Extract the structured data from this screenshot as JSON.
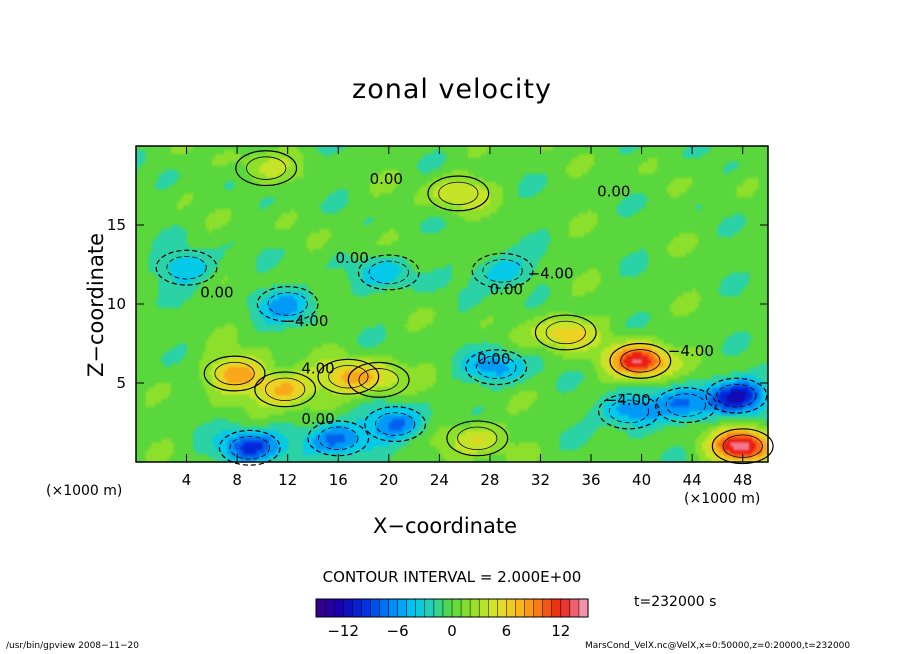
{
  "chart_data": {
    "type": "heatmap",
    "title": "zonal velocity",
    "xlabel": "X−coordinate",
    "ylabel": "Z−coordinate",
    "x_unit_left": "(×1000 m)",
    "x_unit_right": "(×1000 m)",
    "xlim": [
      0,
      50
    ],
    "ylim": [
      0,
      20
    ],
    "x_ticks": [
      "4",
      "8",
      "12",
      "16",
      "20",
      "24",
      "28",
      "32",
      "36",
      "40",
      "44",
      "48"
    ],
    "x_tick_values": [
      4,
      8,
      12,
      16,
      20,
      24,
      28,
      32,
      36,
      40,
      44,
      48
    ],
    "y_ticks": [
      "5",
      "10",
      "15"
    ],
    "y_tick_values": [
      5,
      10,
      15
    ],
    "contour_interval_text": "CONTOUR INTERVAL = 2.000E+00",
    "contour_labels": [
      {
        "text": "0.00",
        "x": 19.8,
        "z": 17.6
      },
      {
        "text": "0.00",
        "x": 37.8,
        "z": 16.8
      },
      {
        "text": "0.00",
        "x": 17.1,
        "z": 12.6
      },
      {
        "text": "−4.00",
        "x": 32.8,
        "z": 11.6
      },
      {
        "text": "0.00",
        "x": 29.3,
        "z": 10.6
      },
      {
        "text": "0.00",
        "x": 6.4,
        "z": 10.4
      },
      {
        "text": "−4.00",
        "x": 13.4,
        "z": 8.6
      },
      {
        "text": "0.00",
        "x": 28.3,
        "z": 6.2
      },
      {
        "text": "4.00",
        "x": 14.4,
        "z": 5.6
      },
      {
        "text": "−4.00",
        "x": 43.9,
        "z": 6.7
      },
      {
        "text": "−4.00",
        "x": 38.9,
        "z": 3.6
      },
      {
        "text": "0.00",
        "x": 14.4,
        "z": 2.4
      }
    ],
    "colorbar": {
      "min": -15,
      "max": 15,
      "tick_labels": [
        "−12",
        "−6",
        "0",
        "6",
        "12"
      ],
      "tick_values": [
        -12,
        -6,
        0,
        6,
        12
      ]
    },
    "features": [
      {
        "x": 7.8,
        "z": 5.6,
        "value": 8
      },
      {
        "x": 11.8,
        "z": 4.6,
        "value": 8
      },
      {
        "x": 16.8,
        "z": 5.4,
        "value": 6
      },
      {
        "x": 19.2,
        "z": 5.2,
        "value": 4
      },
      {
        "x": 39.9,
        "z": 6.4,
        "value": 13
      },
      {
        "x": 47.5,
        "z": 4.2,
        "value": -11
      },
      {
        "x": 39.0,
        "z": 3.2,
        "value": -7
      },
      {
        "x": 43.5,
        "z": 3.6,
        "value": -6
      },
      {
        "x": 48.0,
        "z": 1.0,
        "value": 14
      },
      {
        "x": 9.0,
        "z": 0.9,
        "value": -10
      },
      {
        "x": 16.0,
        "z": 1.5,
        "value": -8
      },
      {
        "x": 20.5,
        "z": 2.4,
        "value": -7
      },
      {
        "x": 28.5,
        "z": 6.0,
        "value": -6
      },
      {
        "x": 20.0,
        "z": 12.0,
        "value": -4
      },
      {
        "x": 29.0,
        "z": 12.1,
        "value": -5
      },
      {
        "x": 4.0,
        "z": 12.3,
        "value": -5
      },
      {
        "x": 12.0,
        "z": 10.0,
        "value": -6
      },
      {
        "x": 25.5,
        "z": 17.0,
        "value": 5
      },
      {
        "x": 34.0,
        "z": 8.2,
        "value": 7
      },
      {
        "x": 27.0,
        "z": 1.5,
        "value": 5
      },
      {
        "x": 10.3,
        "z": 18.6,
        "value": 3
      }
    ]
  },
  "info": {
    "time_text": "t=232000 s",
    "footer_left": "/usr/bin/gpview   2008−11−20",
    "footer_right": "MarsCond_VelX.nc@VelX,x=0:50000,z=0:20000,t=232000"
  }
}
